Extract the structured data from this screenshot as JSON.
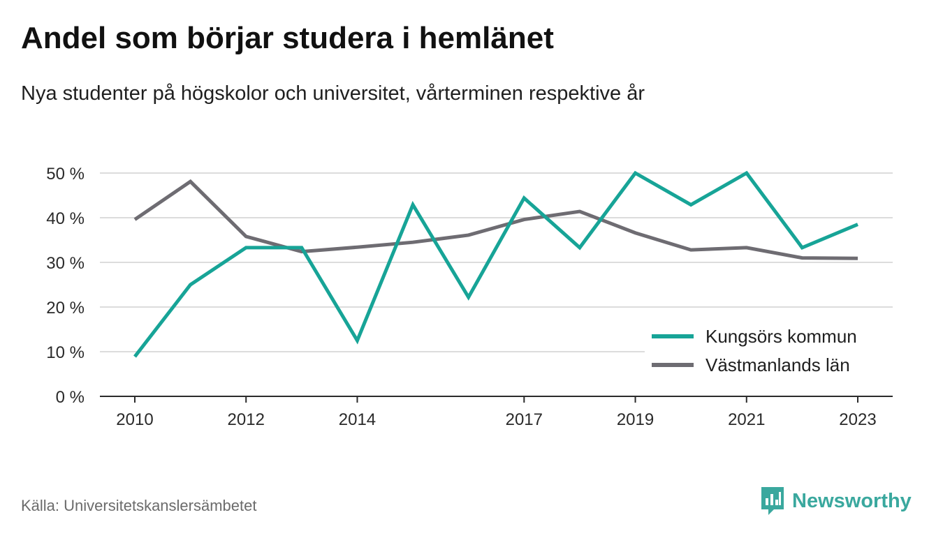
{
  "title": "Andel som börjar studera i hemlänet",
  "subtitle": "Nya studenter på högskolor och universitet, vårterminen respektive år",
  "source": "Källa: Universitetskanslersämbetet",
  "brand": {
    "name": "Newsworthy",
    "color": "#3aa89e"
  },
  "chart_data": {
    "type": "line",
    "title": "Andel som börjar studera i hemlänet",
    "subtitle": "Nya studenter på högskolor och universitet, vårterminen respektive år",
    "x": [
      2010,
      2011,
      2012,
      2013,
      2014,
      2015,
      2016,
      2017,
      2018,
      2019,
      2020,
      2021,
      2022,
      2023
    ],
    "x_tick_labels": [
      "2010",
      "2012",
      "2014",
      "2017",
      "2019",
      "2021",
      "2023"
    ],
    "x_ticks": [
      2010,
      2012,
      2014,
      2017,
      2019,
      2021,
      2023
    ],
    "y_ticks": [
      0,
      10,
      20,
      30,
      40,
      50
    ],
    "y_tick_labels": [
      "0 %",
      "10 %",
      "20 %",
      "30 %",
      "40 %",
      "50 %"
    ],
    "ylim": [
      0,
      50
    ],
    "grid": true,
    "legend_position": "bottom-right",
    "series": [
      {
        "name": "Kungsörs kommun",
        "color": "#17a497",
        "values": [
          8.9,
          25.0,
          33.3,
          33.3,
          12.5,
          42.9,
          22.2,
          44.4,
          33.3,
          50.0,
          42.9,
          50.0,
          33.3,
          38.5
        ]
      },
      {
        "name": "Västmanlands län",
        "color": "#6e6c72",
        "values": [
          39.6,
          48.1,
          35.8,
          32.4,
          33.4,
          34.5,
          36.1,
          39.6,
          41.4,
          36.6,
          32.8,
          33.3,
          31.0,
          30.9
        ]
      }
    ]
  }
}
